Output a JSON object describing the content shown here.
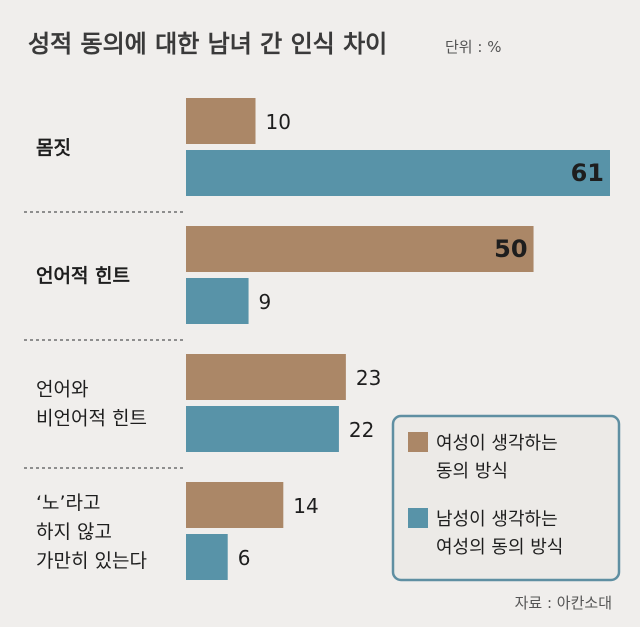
{
  "chart_data": {
    "type": "bar",
    "title": "성적 동의에 대한 남녀 간 인식 차이",
    "unit": "단위 : %",
    "categories": [
      {
        "lines": [
          "몸짓"
        ],
        "bold": true
      },
      {
        "lines": [
          "언어적 힌트"
        ],
        "bold": true
      },
      {
        "lines": [
          "언어와",
          "비언어적 힌트"
        ],
        "bold": false
      },
      {
        "lines": [
          "‘노’라고",
          "하지 않고",
          "가만히 있는다"
        ],
        "bold": false
      }
    ],
    "series": [
      {
        "name": "여성이 생각하는 동의 방식",
        "legend_lines": [
          "여성이 생각하는",
          "동의 방식"
        ],
        "color": "#ab8767",
        "values": [
          10,
          50,
          23,
          14
        ]
      },
      {
        "name": "남성이 생각하는 여성의 동의 방식",
        "legend_lines": [
          "남성이 생각하는",
          "여성의 동의 방식"
        ],
        "color": "#5893a8",
        "values": [
          61,
          9,
          22,
          6
        ]
      }
    ],
    "xlim": [
      0,
      61
    ],
    "legend_position": "bottom-right",
    "source": "자료 : 아칸소대",
    "grid": false
  }
}
